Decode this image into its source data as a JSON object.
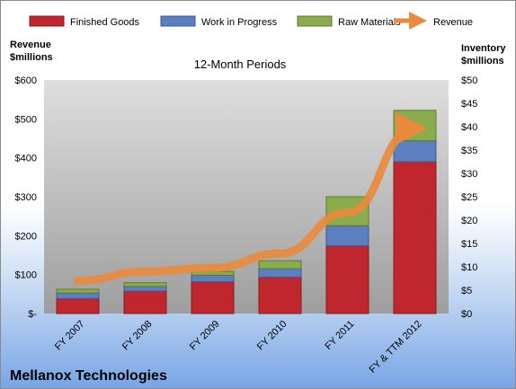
{
  "chart_data": {
    "type": "bar",
    "stacked": true,
    "title": "Mellanox Technologies",
    "subtitle": "12-Month Periods",
    "categories": [
      "FY 2007",
      "FY 2008",
      "FY 2009",
      "FY 2010",
      "FY 2011",
      "FY & TTM 2012"
    ],
    "ylabel_left": "Revenue $millions",
    "ylabel_right": "Inventory $millions",
    "ylim_left": [
      0,
      600
    ],
    "ylim_right": [
      0,
      50
    ],
    "left_ticks": [
      "$-",
      "$100",
      "$200",
      "$300",
      "$400",
      "$500",
      "$600"
    ],
    "right_ticks": [
      "$0",
      "$5",
      "$10",
      "$15",
      "$20",
      "$25",
      "$30",
      "$35",
      "$40",
      "$45",
      "$50"
    ],
    "series": [
      {
        "name": "Finished Goods",
        "axis": "right",
        "color": "#c0262d",
        "values": [
          3.2,
          4.8,
          6.8,
          7.8,
          14.5,
          32.5
        ]
      },
      {
        "name": "Work in Progress",
        "axis": "right",
        "color": "#5b7fbf",
        "values": [
          1.2,
          1.0,
          1.4,
          1.8,
          4.3,
          4.5
        ]
      },
      {
        "name": "Raw Materials",
        "axis": "right",
        "color": "#8aac4c",
        "values": [
          0.8,
          0.8,
          0.8,
          1.7,
          6.2,
          6.5
        ]
      },
      {
        "name": "Revenue",
        "axis": "left",
        "type": "line",
        "color": "#e98a3c",
        "values": [
          84,
          108,
          117,
          154,
          259,
          475
        ]
      }
    ],
    "grid": false,
    "legend": "top"
  }
}
